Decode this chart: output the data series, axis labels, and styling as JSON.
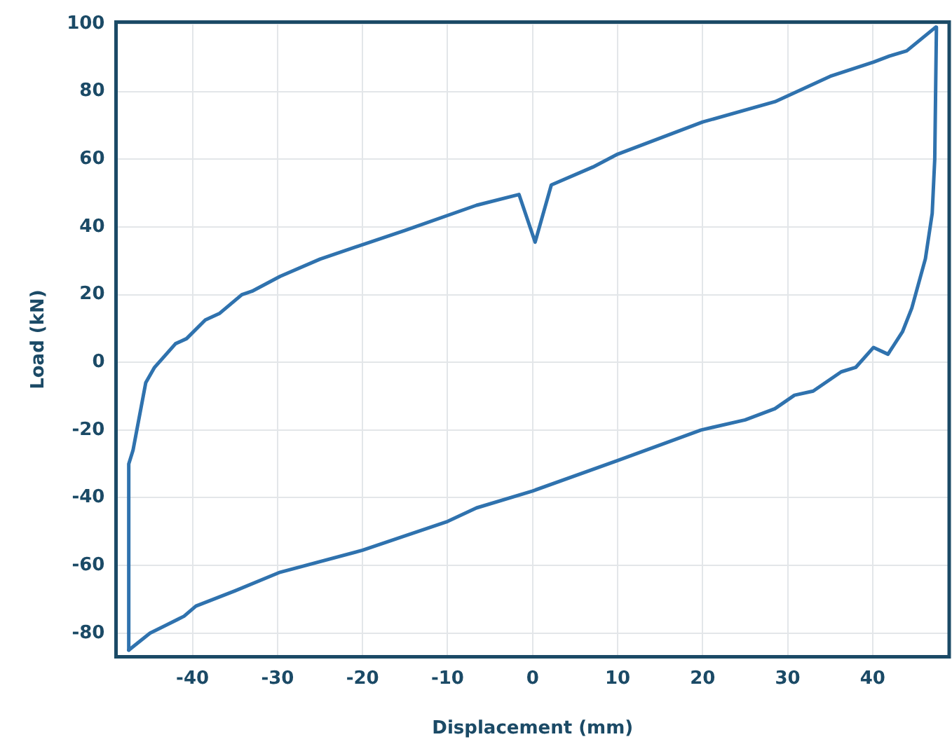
{
  "chart_data": {
    "type": "line",
    "xlabel": "Displacement (mm)",
    "ylabel": "Load (kN)",
    "xlim": [
      -49,
      49
    ],
    "xticks": [
      -40,
      -30,
      -20,
      -10,
      0,
      10,
      20,
      30,
      40
    ],
    "ylim": [
      -87,
      100.5
    ],
    "yticks": [
      -80,
      -60,
      -40,
      -20,
      0,
      20,
      40,
      60,
      80,
      100
    ],
    "grid": true,
    "legend": false,
    "marker": "none",
    "line_style": "solid",
    "series": [
      {
        "color": "#2f72ae",
        "x": [
          -47.5,
          -45,
          -43,
          -41,
          -39.6,
          -35,
          -29.7,
          -20,
          -10,
          -6.6,
          0,
          10,
          19.8,
          25,
          28.5,
          30.8,
          33,
          36.3,
          38,
          40.1,
          41.8,
          43.5,
          44.6,
          46.2,
          47,
          47.3,
          47.5
        ],
        "values": [
          -85,
          -80,
          -77.5,
          -75,
          -72,
          -67.5,
          -62,
          -55.5,
          -47,
          -43,
          -38,
          -29,
          -20,
          -17,
          -13.7,
          -9.7,
          -8.5,
          -2.8,
          -1.5,
          4.4,
          2.4,
          9,
          16,
          30.6,
          44,
          60,
          99
        ]
      },
      {
        "color": "#2f72ae",
        "x": [
          -47.5,
          -47.5,
          -47,
          -46.7,
          -45.5,
          -44.5,
          -42,
          -40.7,
          -38.5,
          -36.8,
          -34.2,
          -33,
          -29.7,
          -25,
          -15,
          -6.6,
          -1.6,
          0.3,
          2.2,
          7.1,
          10,
          20,
          28.5,
          35,
          40.1,
          42,
          44,
          47.4
        ],
        "values": [
          -85,
          -30,
          -26,
          -22,
          -6,
          -1.6,
          5.5,
          7,
          12.5,
          14.5,
          20,
          21,
          25.4,
          30.5,
          39,
          46.4,
          49.6,
          35.5,
          52.4,
          57.7,
          61.5,
          71,
          77,
          84.5,
          88.7,
          90.5,
          92,
          99
        ]
      }
    ]
  }
}
